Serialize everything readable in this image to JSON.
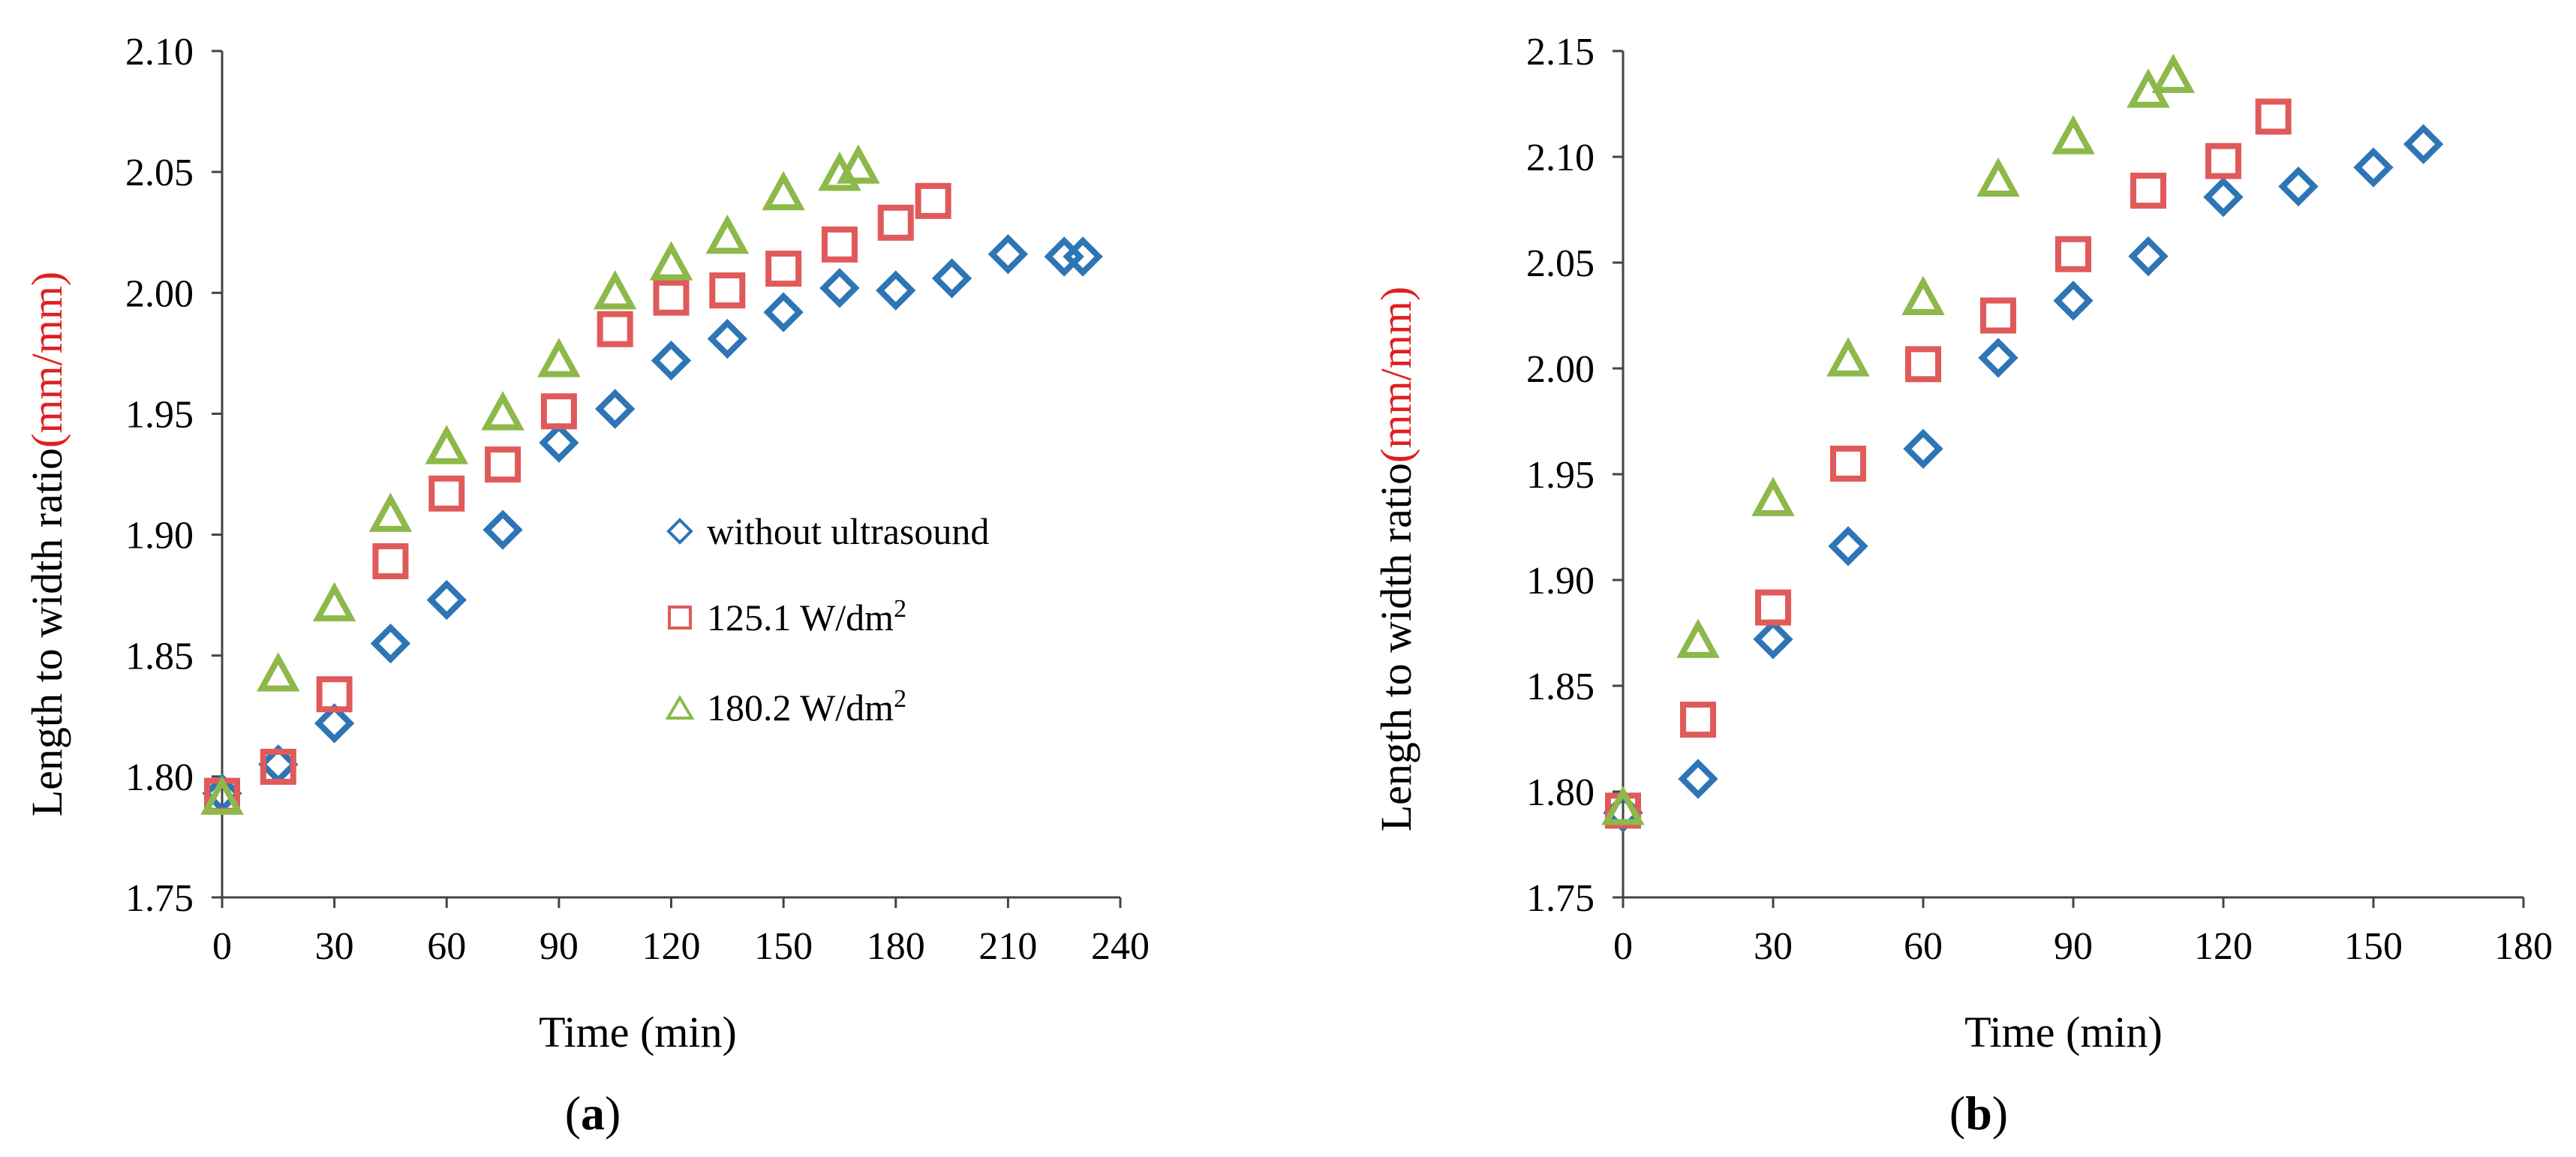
{
  "chart_data": [
    {
      "type": "scatter",
      "panel_label": "a",
      "xlabel": "Time (min)",
      "ylabel": "Length to width ratio",
      "ylabel_units": "(mm/mm)",
      "xlim": [
        0,
        240
      ],
      "ylim": [
        1.75,
        2.1
      ],
      "xticks": [
        0,
        30,
        60,
        90,
        120,
        150,
        180,
        210,
        240
      ],
      "yticks": [
        "1.75",
        "1.80",
        "1.85",
        "1.90",
        "1.95",
        "2.00",
        "2.05",
        "2.10"
      ],
      "grid": false,
      "legend_position": "center-right",
      "series": [
        {
          "name": "without ultrasound",
          "marker": "diamond",
          "color": "#2E75B6",
          "x": [
            0,
            15,
            30,
            45,
            60,
            75,
            90,
            105,
            120,
            135,
            150,
            165,
            180,
            195,
            210,
            225,
            230
          ],
          "y": [
            1.793,
            1.805,
            1.822,
            1.855,
            1.873,
            1.902,
            1.938,
            1.952,
            1.972,
            1.981,
            1.992,
            2.002,
            2.001,
            2.006,
            2.016,
            2.015,
            2.015
          ]
        },
        {
          "name": "125.1 W/dm",
          "name_sup": "2",
          "marker": "square",
          "color": "#E05A5A",
          "x": [
            0,
            15,
            30,
            45,
            60,
            75,
            90,
            105,
            120,
            135,
            150,
            165,
            180,
            190
          ],
          "y": [
            1.792,
            1.804,
            1.834,
            1.889,
            1.917,
            1.929,
            1.951,
            1.985,
            1.998,
            2.001,
            2.01,
            2.02,
            2.029,
            2.038
          ]
        },
        {
          "name": "180.2 W/dm",
          "name_sup": "2",
          "marker": "triangle",
          "color": "#8DB84A",
          "x": [
            0,
            15,
            30,
            45,
            60,
            75,
            90,
            105,
            120,
            135,
            150,
            165,
            170
          ],
          "y": [
            1.791,
            1.842,
            1.871,
            1.908,
            1.936,
            1.95,
            1.972,
            2.0,
            2.012,
            2.023,
            2.041,
            2.049,
            2.052
          ]
        }
      ]
    },
    {
      "type": "scatter",
      "panel_label": "b",
      "xlabel": "Time (min)",
      "ylabel": "Length to width ratio",
      "ylabel_units": "(mm/mm)",
      "xlim": [
        0,
        180
      ],
      "ylim": [
        1.75,
        2.15
      ],
      "xticks": [
        0,
        30,
        60,
        90,
        120,
        150,
        180
      ],
      "yticks": [
        "1.75",
        "1.80",
        "1.85",
        "1.90",
        "1.95",
        "2.00",
        "2.05",
        "2.10",
        "2.15"
      ],
      "grid": false,
      "series": [
        {
          "name": "without ultrasound",
          "marker": "diamond",
          "color": "#2E75B6",
          "x": [
            0,
            15,
            30,
            45,
            60,
            75,
            90,
            105,
            120,
            135,
            150,
            160
          ],
          "y": [
            1.79,
            1.806,
            1.872,
            1.916,
            1.962,
            2.005,
            2.032,
            2.053,
            2.081,
            2.086,
            2.095,
            2.106
          ]
        },
        {
          "name": "125.1 W/dm",
          "name_sup": "2",
          "marker": "square",
          "color": "#E05A5A",
          "x": [
            0,
            15,
            30,
            45,
            60,
            75,
            90,
            105,
            120,
            130
          ],
          "y": [
            1.791,
            1.834,
            1.887,
            1.955,
            2.002,
            2.025,
            2.054,
            2.084,
            2.098,
            2.119
          ]
        },
        {
          "name": "180.2 W/dm",
          "name_sup": "2",
          "marker": "triangle",
          "color": "#8DB84A",
          "x": [
            0,
            15,
            30,
            45,
            60,
            75,
            90,
            105,
            110
          ],
          "y": [
            1.792,
            1.871,
            1.938,
            2.004,
            2.033,
            2.089,
            2.109,
            2.131,
            2.138
          ]
        }
      ]
    }
  ]
}
